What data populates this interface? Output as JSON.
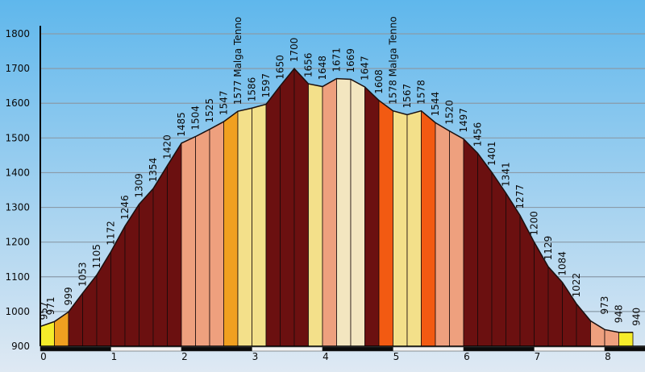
{
  "chart_data": {
    "type": "area",
    "x_range": [
      0,
      8.4
    ],
    "ylim": [
      900,
      1800
    ],
    "y_ticks": [
      900,
      1000,
      1100,
      1200,
      1300,
      1400,
      1500,
      1600,
      1700,
      1800
    ],
    "x_ticks": [
      "0",
      "1",
      "2",
      "3",
      "4",
      "5",
      "6",
      "7",
      "8"
    ],
    "segments": [
      {
        "x0": 0.0,
        "x1": 0.2,
        "elev": 957,
        "color": "#f5ec2a"
      },
      {
        "x0": 0.2,
        "x1": 0.4,
        "elev": 971,
        "color": "#f0a020"
      },
      {
        "x0": 0.4,
        "x1": 0.6,
        "elev": 999,
        "color": "#6b1010"
      },
      {
        "x0": 0.6,
        "x1": 0.8,
        "elev": 1053,
        "color": "#6b1010"
      },
      {
        "x0": 0.8,
        "x1": 1.0,
        "elev": 1105,
        "color": "#6b1010"
      },
      {
        "x0": 1.0,
        "x1": 1.2,
        "elev": 1172,
        "color": "#6b1010"
      },
      {
        "x0": 1.2,
        "x1": 1.4,
        "elev": 1246,
        "color": "#6b1010"
      },
      {
        "x0": 1.4,
        "x1": 1.6,
        "elev": 1309,
        "color": "#6b1010"
      },
      {
        "x0": 1.6,
        "x1": 1.8,
        "elev": 1354,
        "color": "#6b1010"
      },
      {
        "x0": 1.8,
        "x1": 2.0,
        "elev": 1420,
        "color": "#6b1010"
      },
      {
        "x0": 2.0,
        "x1": 2.2,
        "elev": 1485,
        "color": "#eea07e"
      },
      {
        "x0": 2.2,
        "x1": 2.4,
        "elev": 1504,
        "color": "#eea07e"
      },
      {
        "x0": 2.4,
        "x1": 2.6,
        "elev": 1525,
        "color": "#eea07e"
      },
      {
        "x0": 2.6,
        "x1": 2.8,
        "elev": 1547,
        "color": "#f0a020"
      },
      {
        "x0": 2.8,
        "x1": 3.0,
        "elev": 1577,
        "color": "#f3e08a"
      },
      {
        "x0": 3.0,
        "x1": 3.2,
        "elev": 1586,
        "color": "#f3e08a"
      },
      {
        "x0": 3.2,
        "x1": 3.4,
        "elev": 1597,
        "color": "#6b1010"
      },
      {
        "x0": 3.4,
        "x1": 3.6,
        "elev": 1650,
        "color": "#6b1010"
      },
      {
        "x0": 3.6,
        "x1": 3.8,
        "elev": 1700,
        "color": "#6b1010"
      },
      {
        "x0": 3.8,
        "x1": 4.0,
        "elev": 1656,
        "color": "#f3e08a"
      },
      {
        "x0": 4.0,
        "x1": 4.2,
        "elev": 1648,
        "color": "#eea07e"
      },
      {
        "x0": 4.2,
        "x1": 4.4,
        "elev": 1671,
        "color": "#f3e6c0"
      },
      {
        "x0": 4.4,
        "x1": 4.6,
        "elev": 1669,
        "color": "#f3e6c0"
      },
      {
        "x0": 4.6,
        "x1": 4.8,
        "elev": 1647,
        "color": "#6b1010"
      },
      {
        "x0": 4.8,
        "x1": 5.0,
        "elev": 1608,
        "color": "#f25a12"
      },
      {
        "x0": 5.0,
        "x1": 5.2,
        "elev": 1578,
        "color": "#f3e08a"
      },
      {
        "x0": 5.2,
        "x1": 5.4,
        "elev": 1567,
        "color": "#f3e08a"
      },
      {
        "x0": 5.4,
        "x1": 5.6,
        "elev": 1578,
        "color": "#f25a12"
      },
      {
        "x0": 5.6,
        "x1": 5.8,
        "elev": 1544,
        "color": "#eea07e"
      },
      {
        "x0": 5.8,
        "x1": 6.0,
        "elev": 1520,
        "color": "#eea07e"
      },
      {
        "x0": 6.0,
        "x1": 6.2,
        "elev": 1497,
        "color": "#6b1010"
      },
      {
        "x0": 6.2,
        "x1": 6.4,
        "elev": 1456,
        "color": "#6b1010"
      },
      {
        "x0": 6.4,
        "x1": 6.6,
        "elev": 1401,
        "color": "#6b1010"
      },
      {
        "x0": 6.6,
        "x1": 6.8,
        "elev": 1341,
        "color": "#6b1010"
      },
      {
        "x0": 6.8,
        "x1": 7.0,
        "elev": 1277,
        "color": "#6b1010"
      },
      {
        "x0": 7.0,
        "x1": 7.2,
        "elev": 1200,
        "color": "#6b1010"
      },
      {
        "x0": 7.2,
        "x1": 7.4,
        "elev": 1129,
        "color": "#6b1010"
      },
      {
        "x0": 7.4,
        "x1": 7.6,
        "elev": 1084,
        "color": "#6b1010"
      },
      {
        "x0": 7.6,
        "x1": 7.8,
        "elev": 1022,
        "color": "#6b1010"
      },
      {
        "x0": 7.8,
        "x1": 8.0,
        "elev": 973,
        "color": "#eea07e"
      },
      {
        "x0": 8.0,
        "x1": 8.2,
        "elev": 948,
        "color": "#eea07e"
      },
      {
        "x0": 8.2,
        "x1": 8.4,
        "elev": 940,
        "color": "#f5ec2a"
      }
    ],
    "labels": [
      {
        "x": 0.05,
        "elev": 957,
        "text": "957"
      },
      {
        "x": 0.15,
        "elev": 971,
        "text": "971"
      },
      {
        "x": 0.4,
        "elev": 999,
        "text": "999"
      },
      {
        "x": 0.6,
        "elev": 1053,
        "text": "1053"
      },
      {
        "x": 0.8,
        "elev": 1105,
        "text": "1105"
      },
      {
        "x": 1.0,
        "elev": 1172,
        "text": "1172"
      },
      {
        "x": 1.2,
        "elev": 1246,
        "text": "1246"
      },
      {
        "x": 1.4,
        "elev": 1309,
        "text": "1309"
      },
      {
        "x": 1.6,
        "elev": 1354,
        "text": "1354"
      },
      {
        "x": 1.8,
        "elev": 1420,
        "text": "1420"
      },
      {
        "x": 2.0,
        "elev": 1485,
        "text": "1485"
      },
      {
        "x": 2.2,
        "elev": 1504,
        "text": "1504"
      },
      {
        "x": 2.4,
        "elev": 1525,
        "text": "1525"
      },
      {
        "x": 2.6,
        "elev": 1547,
        "text": "1547"
      },
      {
        "x": 2.8,
        "elev": 1577,
        "text": "1577 Malga Tenno"
      },
      {
        "x": 3.0,
        "elev": 1586,
        "text": "1586"
      },
      {
        "x": 3.2,
        "elev": 1597,
        "text": "1597"
      },
      {
        "x": 3.4,
        "elev": 1650,
        "text": "1650"
      },
      {
        "x": 3.6,
        "elev": 1700,
        "text": "1700"
      },
      {
        "x": 3.8,
        "elev": 1656,
        "text": "1656"
      },
      {
        "x": 4.0,
        "elev": 1648,
        "text": "1648"
      },
      {
        "x": 4.2,
        "elev": 1671,
        "text": "1671"
      },
      {
        "x": 4.4,
        "elev": 1669,
        "text": "1669"
      },
      {
        "x": 4.6,
        "elev": 1647,
        "text": "1647"
      },
      {
        "x": 4.8,
        "elev": 1608,
        "text": "1608"
      },
      {
        "x": 5.0,
        "elev": 1578,
        "text": "1578 Malga Tenno"
      },
      {
        "x": 5.2,
        "elev": 1567,
        "text": "1567"
      },
      {
        "x": 5.4,
        "elev": 1578,
        "text": "1578"
      },
      {
        "x": 5.6,
        "elev": 1544,
        "text": "1544"
      },
      {
        "x": 5.8,
        "elev": 1520,
        "text": "1520"
      },
      {
        "x": 6.0,
        "elev": 1497,
        "text": "1497"
      },
      {
        "x": 6.2,
        "elev": 1456,
        "text": "1456"
      },
      {
        "x": 6.4,
        "elev": 1401,
        "text": "1401"
      },
      {
        "x": 6.6,
        "elev": 1341,
        "text": "1341"
      },
      {
        "x": 6.8,
        "elev": 1277,
        "text": "1277"
      },
      {
        "x": 7.0,
        "elev": 1200,
        "text": "1200"
      },
      {
        "x": 7.2,
        "elev": 1129,
        "text": "1129"
      },
      {
        "x": 7.4,
        "elev": 1084,
        "text": "1084"
      },
      {
        "x": 7.6,
        "elev": 1022,
        "text": "1022"
      },
      {
        "x": 8.0,
        "elev": 973,
        "text": "973"
      },
      {
        "x": 8.2,
        "elev": 948,
        "text": "948"
      },
      {
        "x": 8.45,
        "elev": 940,
        "text": "940"
      }
    ],
    "grid": true,
    "background_top": "#5fb7ec",
    "background_bottom": "#dfe9f3"
  }
}
